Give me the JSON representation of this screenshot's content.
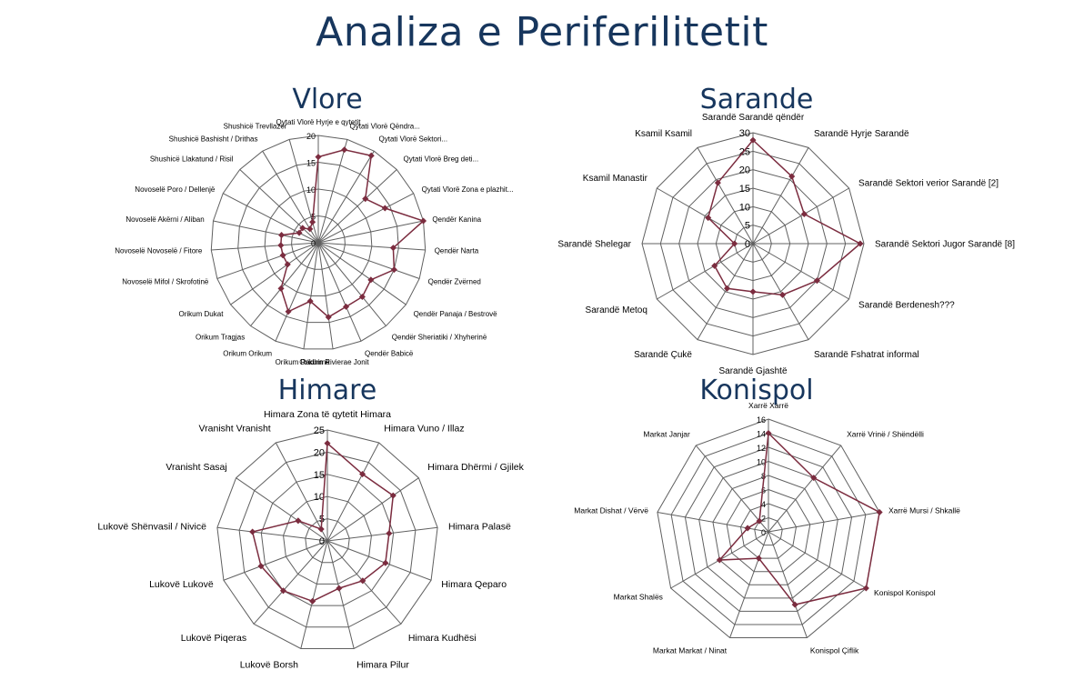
{
  "page": {
    "title": "Analiza e Periferilitetit"
  },
  "colors": {
    "series": "#7b2c3f",
    "grid": "#606060",
    "title": "#17365d"
  },
  "chart_data": [
    {
      "type": "radar",
      "title": "Vlore",
      "ylim": [
        0,
        20
      ],
      "ticks": [
        "0",
        "5",
        "10",
        "15",
        "20"
      ],
      "categories": [
        "Qytati Vlorë Hyrje e qytetit",
        "Qytati Vlorë Qëndra...",
        "Qytati Vlorë Sektori...",
        "Qytati Vlorë Breg deti...",
        "Qytati Vlorë Zona e plazhit...",
        "Qendër Kanina",
        "Qendër Narta",
        "Qendër Zvërned",
        "Qendër Panaja / Bestrovë",
        "Qendër Sheriatiki / Xhyherinë",
        "Qendër Babicë",
        "Orikum Rivierae Jonit",
        "Orikum Radhimë",
        "Orikum Orikum",
        "Orikum Tragjas",
        "Orikum Dukat",
        "Novoselë Mifol / Skrofotinë",
        "Novoselë Novoselë / Fitore",
        "Novoselë Akërni / Aliban",
        "Novoselë Poro / Dellenjë",
        "Shushicë Llakatund / Risil",
        "Shushicë Bashisht / Drithas",
        "Shushicë Trevllazër"
      ],
      "values": [
        16,
        18,
        19,
        12,
        14,
        20,
        14,
        15,
        12,
        13,
        13,
        14,
        11,
        14,
        11,
        7,
        7,
        7,
        7,
        4,
        4,
        3,
        4
      ]
    },
    {
      "type": "radar",
      "title": "Sarande",
      "ylim": [
        0,
        30
      ],
      "ticks": [
        "0",
        "5",
        "10",
        "15",
        "20",
        "25",
        "30"
      ],
      "categories": [
        "Sarandë Sarandë qëndër",
        "Sarandë Hyrje Sarandë",
        "Sarandë Sektori verior Sarandë [2]",
        "Sarandë Sektori Jugor Sarandë [8]",
        "Sarandë Berdenesh???",
        "Sarandë Fshatrat informal",
        "Sarandë Gjashtë",
        "Sarandë Çukë",
        "Sarandë Metoq",
        "Sarandë Shelegar",
        "Ksamil Manastir",
        "Ksamil Ksamil"
      ],
      "values": [
        28,
        21,
        16,
        29,
        20,
        16,
        13,
        14,
        12,
        5,
        14,
        19
      ]
    },
    {
      "type": "radar",
      "title": "Himare",
      "ylim": [
        0,
        25
      ],
      "ticks": [
        "0",
        "5",
        "10",
        "15",
        "20",
        "25"
      ],
      "categories": [
        "Himara Zona të qytetit Himara",
        "Himara Vuno / Illaz",
        "Himara Dhërmi / Gjilek",
        "Himara Palasë",
        "Himara Qeparo",
        "Himara Kudhësi",
        "Himara Pilur",
        "Lukovë Borsh",
        "Lukovë Piqeras",
        "Lukovë Lukovë",
        "Lukovë Shënvasil / Nivicë",
        "Vranisht Sasaj",
        "Vranisht Vranisht"
      ],
      "values": [
        22,
        17,
        18,
        14,
        14,
        12,
        11,
        14,
        15,
        16,
        17,
        8,
        3
      ]
    },
    {
      "type": "radar",
      "title": "Konispol",
      "ylim": [
        0,
        16
      ],
      "ticks": [
        "0",
        "2",
        "4",
        "6",
        "8",
        "10",
        "12",
        "14",
        "16"
      ],
      "categories": [
        "Xarrë Xarrë",
        "Xarrë Vrinë / Shëndëlli",
        "Xarrë Mursi / Shkallë",
        "Konispol Konispol",
        "Konispol Çiflik",
        "Markat Markat / Ninat",
        "Markat Shalës",
        "Markat Dishat / Vërvë",
        "Markat Janjar"
      ],
      "values": [
        14,
        10,
        16,
        16,
        11,
        4,
        8,
        3,
        2
      ]
    }
  ]
}
